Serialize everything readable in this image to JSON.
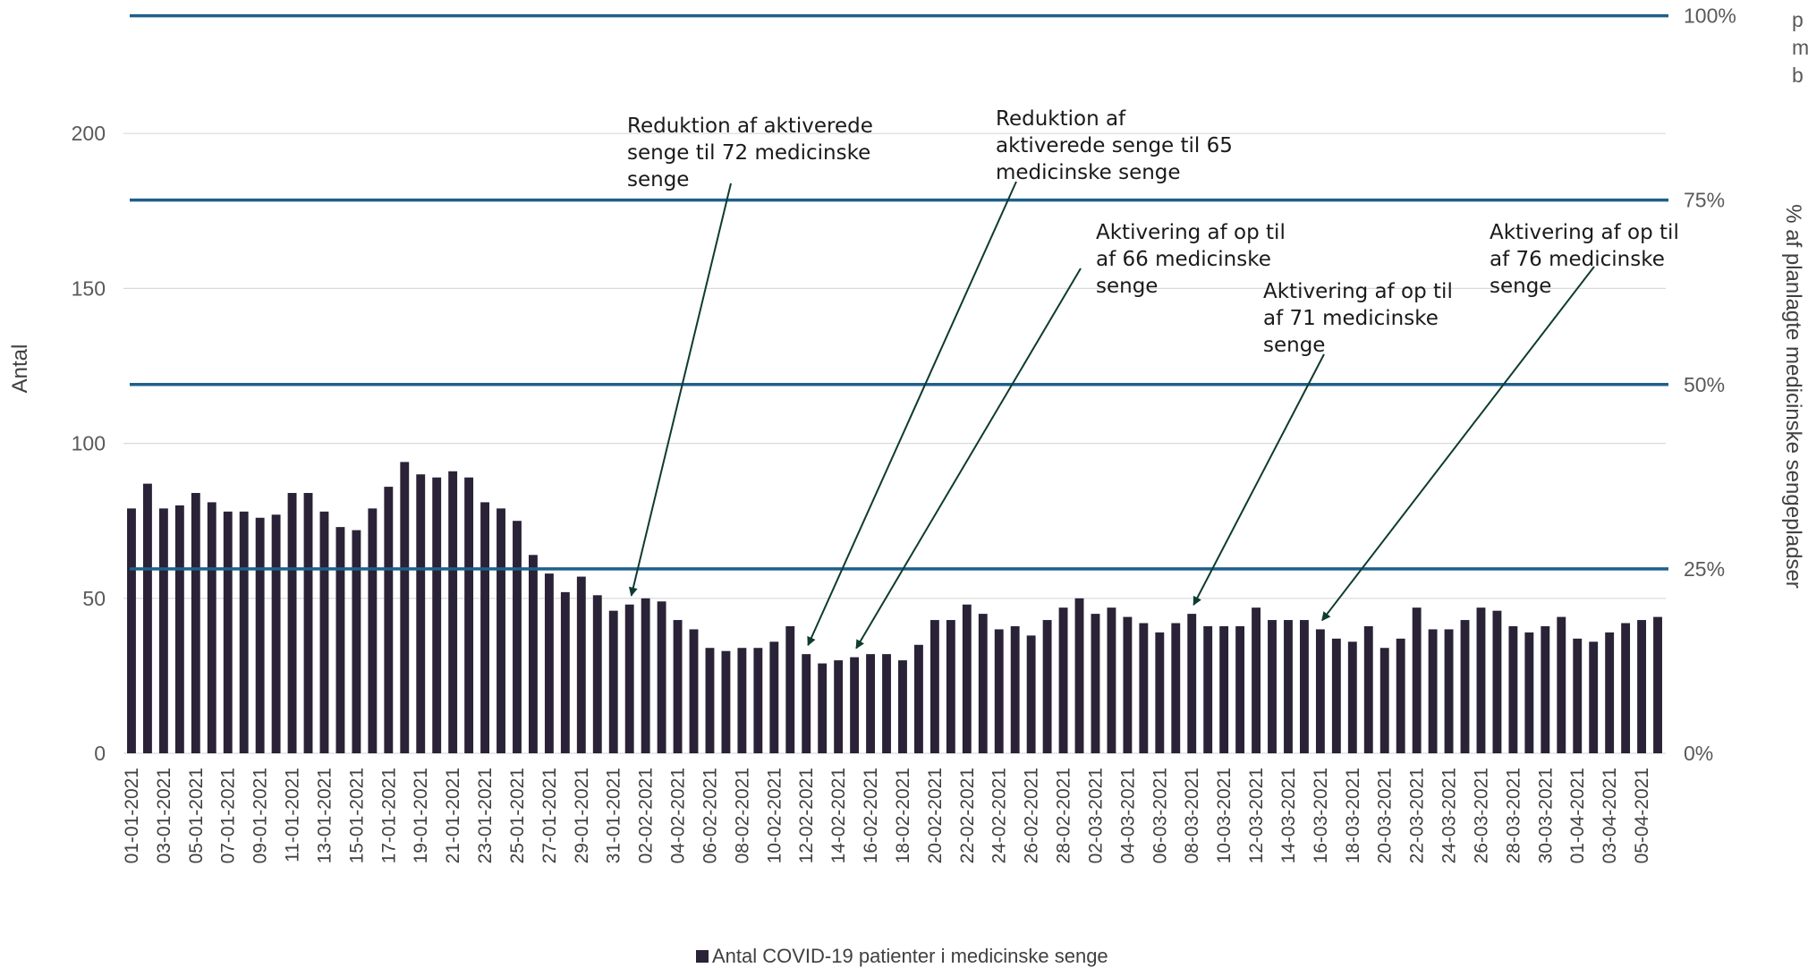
{
  "chart_data": {
    "type": "bar",
    "y_axis_label": "Antal",
    "y2_axis_label": "% af planlagte medicinske sengepladser",
    "ylim": [
      0,
      238
    ],
    "y_ticks": [
      "0",
      "50",
      "100",
      "150",
      "200"
    ],
    "y2_ticks": [
      "0%",
      "25%",
      "50%",
      "75%",
      "100%"
    ],
    "y2_capacity_reference": 238,
    "grid": true,
    "legend_position": "bottom",
    "series": [
      {
        "name": "Antal COVID-19 patienter i medicinske senge",
        "color": "#2a2236",
        "values": [
          79,
          87,
          79,
          80,
          84,
          81,
          78,
          78,
          76,
          77,
          84,
          84,
          78,
          73,
          72,
          79,
          86,
          94,
          90,
          89,
          91,
          89,
          81,
          79,
          75,
          64,
          58,
          52,
          57,
          51,
          46,
          48,
          50,
          49,
          43,
          40,
          34,
          33,
          34,
          34,
          36,
          41,
          32,
          29,
          30,
          31,
          32,
          32,
          30,
          35,
          43,
          43,
          48,
          45,
          40,
          41,
          38,
          43,
          47,
          50,
          45,
          47,
          44,
          42,
          39,
          42,
          45,
          41,
          41,
          41,
          47,
          43,
          43,
          43,
          40,
          37,
          36,
          41,
          34,
          37,
          47,
          40,
          40,
          43,
          47,
          46,
          41,
          39,
          41,
          44,
          37,
          36,
          39,
          42,
          43,
          44
        ]
      }
    ],
    "dates": [
      "01-01-2021",
      "02-01-2021",
      "03-01-2021",
      "04-01-2021",
      "05-01-2021",
      "06-01-2021",
      "07-01-2021",
      "08-01-2021",
      "09-01-2021",
      "10-01-2021",
      "11-01-2021",
      "12-01-2021",
      "13-01-2021",
      "14-01-2021",
      "15-01-2021",
      "16-01-2021",
      "17-01-2021",
      "18-01-2021",
      "19-01-2021",
      "20-01-2021",
      "21-01-2021",
      "22-01-2021",
      "23-01-2021",
      "24-01-2021",
      "25-01-2021",
      "26-01-2021",
      "27-01-2021",
      "28-01-2021",
      "29-01-2021",
      "30-01-2021",
      "31-01-2021",
      "01-02-2021",
      "02-02-2021",
      "03-02-2021",
      "04-02-2021",
      "05-02-2021",
      "06-02-2021",
      "07-02-2021",
      "08-02-2021",
      "09-02-2021",
      "10-02-2021",
      "11-02-2021",
      "12-02-2021",
      "13-02-2021",
      "14-02-2021",
      "15-02-2021",
      "16-02-2021",
      "17-02-2021",
      "18-02-2021",
      "19-02-2021",
      "20-02-2021",
      "21-02-2021",
      "22-02-2021",
      "23-02-2021",
      "24-02-2021",
      "25-02-2021",
      "26-02-2021",
      "27-02-2021",
      "28-02-2021",
      "01-03-2021",
      "02-03-2021",
      "03-03-2021",
      "04-03-2021",
      "05-03-2021",
      "06-03-2021",
      "07-03-2021",
      "08-03-2021",
      "09-03-2021",
      "10-03-2021",
      "11-03-2021",
      "12-03-2021",
      "13-03-2021",
      "14-03-2021",
      "15-03-2021",
      "16-03-2021",
      "17-03-2021",
      "18-03-2021",
      "19-03-2021",
      "20-03-2021",
      "21-03-2021",
      "22-03-2021",
      "23-03-2021",
      "24-03-2021",
      "25-03-2021",
      "26-03-2021",
      "27-03-2021",
      "28-03-2021",
      "29-03-2021",
      "30-03-2021",
      "31-03-2021",
      "01-04-2021",
      "02-04-2021",
      "03-04-2021",
      "04-04-2021",
      "05-04-2021",
      "06-04-2021"
    ],
    "x_tick_labels": [
      "01-01-2021",
      "03-01-2021",
      "05-01-2021",
      "07-01-2021",
      "09-01-2021",
      "11-01-2021",
      "13-01-2021",
      "15-01-2021",
      "17-01-2021",
      "19-01-2021",
      "21-01-2021",
      "23-01-2021",
      "25-01-2021",
      "27-01-2021",
      "29-01-2021",
      "31-01-2021",
      "02-02-2021",
      "04-02-2021",
      "06-02-2021",
      "08-02-2021",
      "10-02-2021",
      "12-02-2021",
      "14-02-2021",
      "16-02-2021",
      "18-02-2021",
      "20-02-2021",
      "22-02-2021",
      "24-02-2021",
      "26-02-2021",
      "28-02-2021",
      "02-03-2021",
      "04-03-2021",
      "06-03-2021",
      "08-03-2021",
      "10-03-2021",
      "12-03-2021",
      "14-03-2021",
      "16-03-2021",
      "18-03-2021",
      "20-03-2021",
      "22-03-2021",
      "24-03-2021",
      "26-03-2021",
      "28-03-2021",
      "30-03-2021",
      "01-04-2021",
      "03-04-2021",
      "05-04-2021"
    ],
    "reference_lines": [
      {
        "label": "0%",
        "value": 0
      },
      {
        "label": "25%",
        "value": 59.5
      },
      {
        "label": "50%",
        "value": 119
      },
      {
        "label": "75%",
        "value": 178.5
      },
      {
        "label": "100%",
        "value": 238
      }
    ],
    "reference_line_color": "#1f5f8b",
    "annotations": [
      {
        "lines": [
          "Reduktion af aktiverede",
          "senge til 72 medicinske",
          "senge"
        ],
        "target_date": "01-02-2021"
      },
      {
        "lines": [
          "Reduktion af",
          "aktiverede senge til 65",
          "medicinske senge"
        ],
        "target_date": "12-02-2021"
      },
      {
        "lines": [
          "Aktivering af op til",
          "af 66 medicinske",
          "senge"
        ],
        "target_date": "15-02-2021"
      },
      {
        "lines": [
          "Aktivering af op til",
          "af 71 medicinske",
          "senge"
        ],
        "target_date": "08-03-2021"
      },
      {
        "lines": [
          "Aktivering af op til",
          "af 76 medicinske",
          "senge"
        ],
        "target_date": "16-03-2021"
      }
    ],
    "clipped_text_lines": [
      "p",
      "m",
      "b"
    ]
  }
}
